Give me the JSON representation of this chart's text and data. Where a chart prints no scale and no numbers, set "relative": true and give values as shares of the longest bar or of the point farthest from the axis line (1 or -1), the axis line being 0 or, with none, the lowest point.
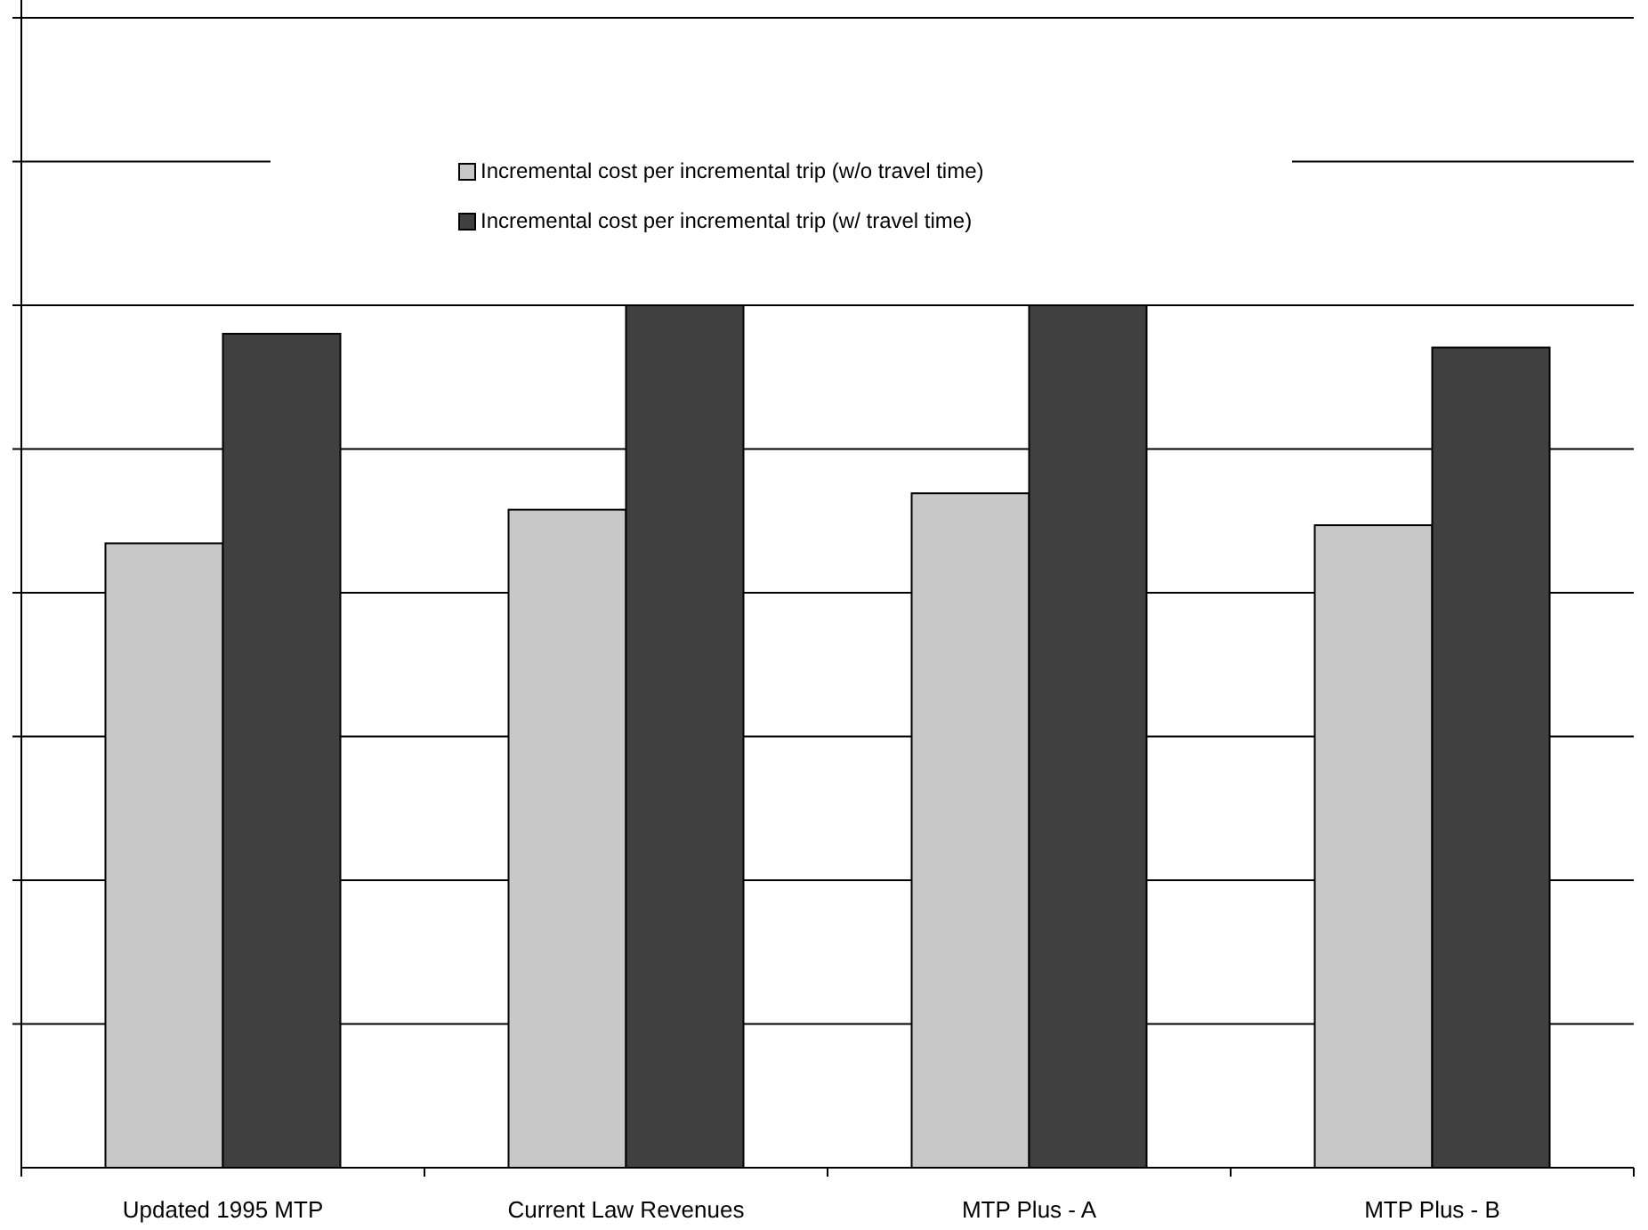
{
  "chart_data": {
    "type": "bar",
    "relative": true,
    "grid": "y",
    "legend": "top",
    "tick_labels": "x",
    "categories": [
      "Updated 1995 MTP",
      "Current Law Revenues",
      "MTP Plus - A",
      "MTP Plus - B"
    ],
    "series": [
      {
        "name": "Incremental cost per incremental trip (w/o travel time)",
        "color": "#c8c8c8",
        "values": [
          0.724,
          0.763,
          0.782,
          0.745
        ]
      },
      {
        "name": "Incremental cost per incremental trip (w/ travel time)",
        "color": "#404040",
        "values": [
          0.967,
          1,
          1,
          0.951
        ]
      }
    ]
  }
}
